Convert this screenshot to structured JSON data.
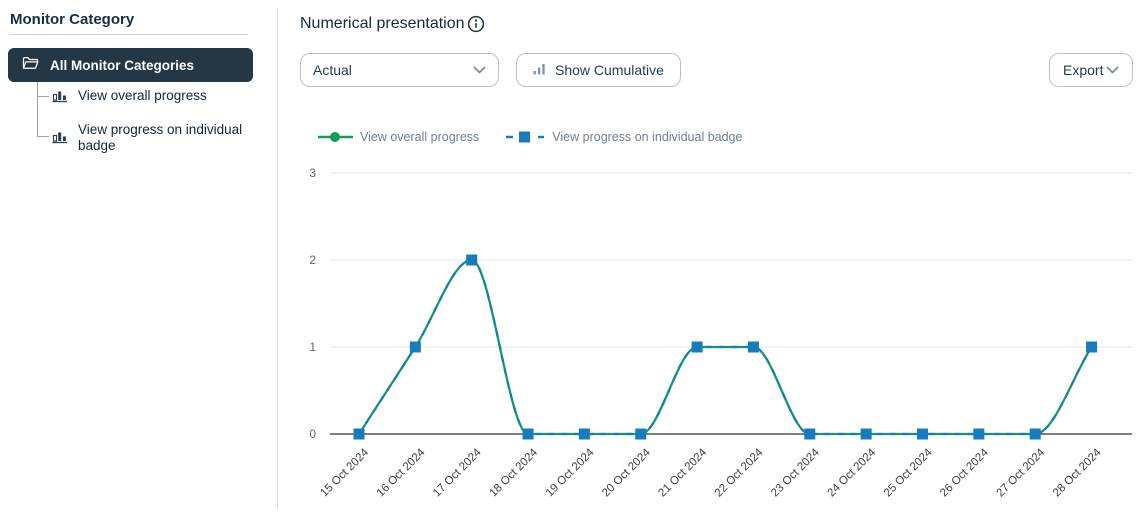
{
  "sidebar": {
    "title": "Monitor Category",
    "selected": {
      "label": "All Monitor Categories",
      "icon": "folder-open-icon"
    },
    "items": [
      {
        "label": "View overall progress",
        "icon": "bar-chart-icon"
      },
      {
        "label": "View progress on individual badge",
        "icon": "bar-chart-icon"
      }
    ]
  },
  "header": {
    "title": "Numerical presentation",
    "info_icon": "info-icon"
  },
  "toolbar": {
    "mode_select_value": "Actual",
    "cumulative_label": "Show Cumulative",
    "cumulative_icon": "bars-icon",
    "export_label": "Export"
  },
  "colors": {
    "sidebar_selected_bg": "#243746",
    "series_green": "#13995c",
    "series_blue": "#177cbe",
    "grid": "#e4e7ea",
    "axis": "#2f3337",
    "tick_text": "#5d686f",
    "xlabel_text": "#3a4045",
    "legend_text": "#70808c",
    "button_border": "#b6c3cd"
  },
  "legend": [
    {
      "label": "View overall progress",
      "color": "#13995c",
      "marker": "circle",
      "line": "solid"
    },
    {
      "label": "View progress on individual badge",
      "color": "#177cbe",
      "marker": "square",
      "line": "dashed"
    }
  ],
  "chart_data": {
    "type": "line",
    "x": [
      "15 Oct 2024",
      "16 Oct 2024",
      "17 Oct 2024",
      "18 Oct 2024",
      "19 Oct 2024",
      "20 Oct 2024",
      "21 Oct 2024",
      "22 Oct 2024",
      "23 Oct 2024",
      "24 Oct 2024",
      "25 Oct 2024",
      "26 Oct 2024",
      "27 Oct 2024",
      "28 Oct 2024"
    ],
    "series": [
      {
        "name": "View overall progress",
        "values": [
          0,
          1,
          2,
          0,
          0,
          0,
          1,
          1,
          0,
          0,
          0,
          0,
          0,
          1
        ],
        "color": "#13995c",
        "style": "solid",
        "marker": "circle"
      },
      {
        "name": "View progress on individual badge",
        "values": [
          0,
          1,
          2,
          0,
          0,
          0,
          1,
          1,
          0,
          0,
          0,
          0,
          0,
          1
        ],
        "color": "#177cbe",
        "style": "dashed",
        "marker": "square"
      }
    ],
    "ylim": [
      0,
      3
    ],
    "yticks": [
      0,
      1,
      2,
      3
    ],
    "grid": true,
    "curve": "monotone",
    "legend_position": "top"
  }
}
